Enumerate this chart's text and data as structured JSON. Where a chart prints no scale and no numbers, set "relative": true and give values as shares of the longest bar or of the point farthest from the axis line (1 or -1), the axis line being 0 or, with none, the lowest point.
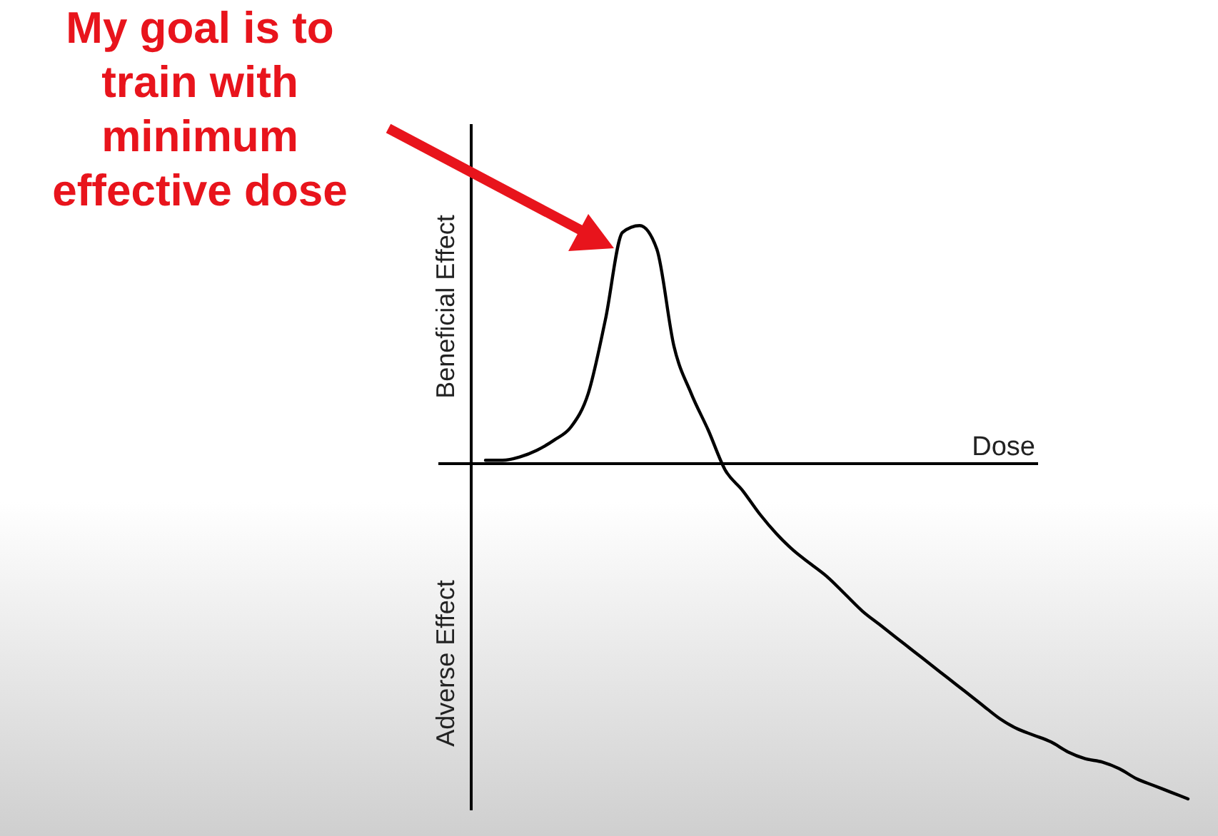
{
  "chart_data": {
    "type": "line",
    "relative": true,
    "xlabel": "Dose",
    "ylabel": "Beneficial Effect",
    "annotations": [
      "Adverse Effect",
      "My goal is to train with minimum effective dose"
    ],
    "categories": [
      null,
      null,
      null,
      null,
      null,
      null,
      null,
      null,
      null,
      null,
      null,
      null,
      null,
      null,
      null,
      null,
      null,
      null,
      null,
      null,
      null,
      null,
      null,
      null,
      null,
      null,
      null,
      null,
      null,
      null,
      null,
      null,
      null,
      null,
      null,
      null,
      null,
      null,
      null,
      null,
      null,
      null
    ],
    "series": [
      {
        "color": "#000000",
        "values": [
          0.01,
          0.01,
          0.02,
          0.04,
          0.07,
          0.11,
          0.21,
          0.43,
          0.69,
          0.71,
          0.64,
          0.35,
          0.21,
          0.1,
          -0.02,
          -0.08,
          -0.15,
          -0.21,
          -0.26,
          -0.3,
          -0.34,
          -0.39,
          -0.44,
          -0.48,
          -0.52,
          -0.56,
          -0.6,
          -0.64,
          -0.68,
          -0.72,
          -0.76,
          -0.79,
          -0.81,
          -0.83,
          -0.86,
          -0.88,
          -0.89,
          -0.91,
          -0.94,
          -0.96,
          -0.98,
          -1
        ]
      }
    ],
    "marker": "none",
    "line_style": "solid"
  }
}
